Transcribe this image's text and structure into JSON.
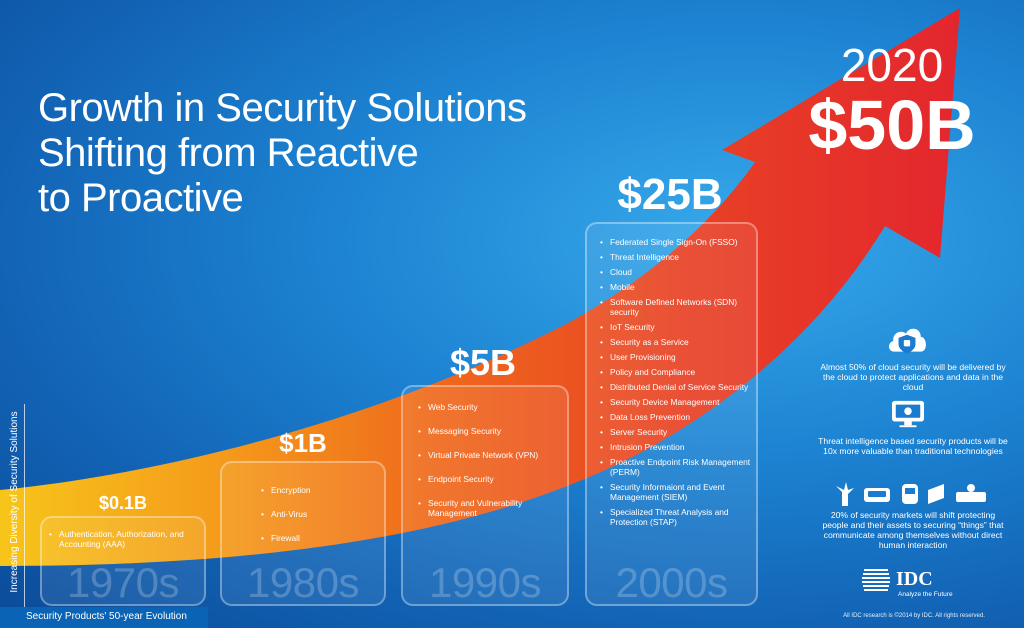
{
  "title": {
    "lines": [
      "Growth in Security Solutions",
      "Shifting from Reactive",
      "to Proactive"
    ]
  },
  "goal": {
    "year": "2020",
    "value": "$50B"
  },
  "eras": [
    {
      "decade": "1970s",
      "value": "$0.1B",
      "items": [
        "Authentication, Authorization, and Accounting (AAA)"
      ]
    },
    {
      "decade": "1980s",
      "value": "$1B",
      "items": [
        "Encryption",
        "Anti-Virus",
        "Firewall"
      ]
    },
    {
      "decade": "1990s",
      "value": "$5B",
      "items": [
        "Web Security",
        "Messaging Security",
        "Virtual Private Network (VPN)",
        "Endpoint Security",
        "Security and Vulnerability Management"
      ]
    },
    {
      "decade": "2000s",
      "value": "$25B",
      "items": [
        "Federated Single Sign-On (FSSO)",
        "Threat Intelligence",
        "Cloud",
        "Mobile",
        "Software Defined Networks (SDN) security",
        "IoT Security",
        "Security as a Service",
        "User Provisioning",
        "Policy and Compliance",
        "Distributed Denial of Service Security",
        "Security Device Management",
        "Data Loss Prevention",
        "Server Security",
        "Intrusion Prevention",
        "Proactive Endpoint Risk Management (PERM)",
        "Security Informaiont and Event Management (SIEM)",
        "Specialized Threat Analysis and Protection (STAP)"
      ]
    }
  ],
  "y_axis_label": "Increasing Diversity of Security Solutions",
  "footer_label": "Security Products' 50-year Evolution",
  "facts": [
    {
      "icon": "cloud-shield-icon",
      "text": "Almost 50% of cloud security will be delivered by the cloud to protect applications and data in the cloud"
    },
    {
      "icon": "threat-monitor-icon",
      "text": "Threat intelligence based security products will be 10x more valuable than traditional technologies"
    },
    {
      "icon": "connected-things-icon",
      "text": "20% of security markets will shift protecting people and their assets to securing “things” that communicate among themselves without direct human interaction"
    }
  ],
  "logo": {
    "name": "IDC",
    "tagline": "Analyze the Future"
  },
  "copyright": "All IDC research is ©2014 by IDC. All rights reserved.",
  "colors": {
    "background": "#1d84d3",
    "arrow_start": "#f7c51a",
    "arrow_mid": "#ef6a1c",
    "arrow_end": "#e3262e"
  }
}
